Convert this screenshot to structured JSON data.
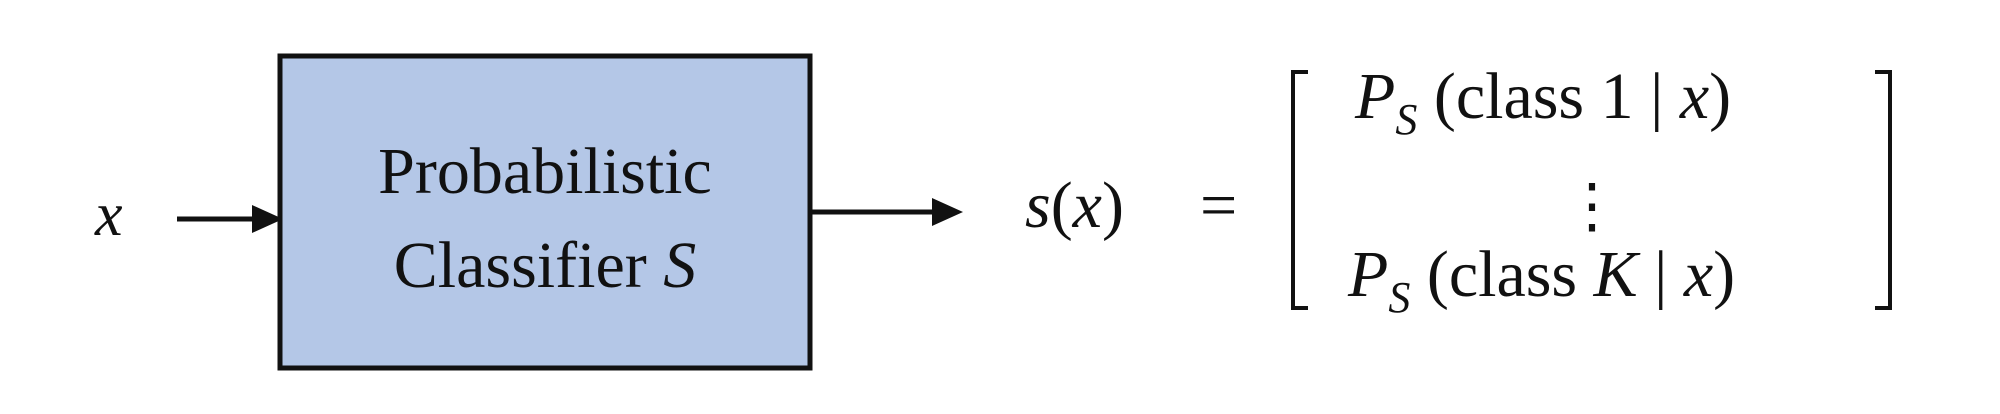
{
  "input": {
    "symbol": "x"
  },
  "classifier": {
    "label_line1": "Probabilistic",
    "label_line2_text": "Classifier",
    "label_line2_var": "S",
    "fill_color": "#b4c7e7",
    "border_color": "#111111"
  },
  "output": {
    "lhs_func": "s",
    "lhs_arg": "x",
    "equals": "=",
    "row1": {
      "p": "P",
      "sub": "S",
      "text": "class 1",
      "bar": "|",
      "var": "x"
    },
    "vdots": "⋮",
    "row2": {
      "p": "P",
      "sub": "S",
      "text": "class",
      "k": "K",
      "bar": "|",
      "var": "x"
    }
  }
}
